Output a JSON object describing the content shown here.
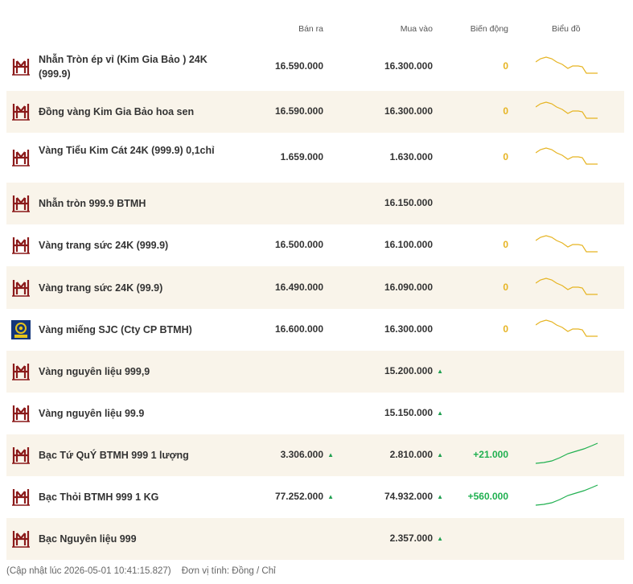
{
  "header": {
    "sell": "Bán ra",
    "buy": "Mua vào",
    "change": "Biến động",
    "chart": "Biểu đồ"
  },
  "colors": {
    "stripe": "#f9f4ea",
    "flat_line": "#e6b422",
    "up_line": "#20b050",
    "brand": "#8b1a1a",
    "sjc_blue": "#14367a",
    "sjc_gold": "#e5c31a"
  },
  "rows": [
    {
      "logo": "btmh-logo",
      "name": "Nhẫn Tròn ép vỉ (Kim Gia Bảo ) 24K (999.9)",
      "sell": "16.590.000",
      "sell_up": false,
      "buy": "16.300.000",
      "buy_up": false,
      "change": "0",
      "trend": "flat"
    },
    {
      "logo": "btmh-logo",
      "name": "Đồng vàng Kim Gia Bảo hoa sen",
      "sell": "16.590.000",
      "sell_up": false,
      "buy": "16.300.000",
      "buy_up": false,
      "change": "0",
      "trend": "flat"
    },
    {
      "logo": "btmh-logo",
      "name": "Vàng Tiểu Kim Cát 24K (999.9) 0,1chỉ",
      "sell": "1.659.000",
      "sell_up": false,
      "buy": "1.630.000",
      "buy_up": false,
      "change": "0",
      "trend": "flat"
    },
    {
      "logo": "btmh-logo",
      "name": "Nhẫn tròn 999.9 BTMH",
      "sell": "",
      "sell_up": false,
      "buy": "16.150.000",
      "buy_up": false,
      "change": "",
      "trend": "none"
    },
    {
      "logo": "btmh-logo",
      "name": "Vàng trang sức 24K (999.9)",
      "sell": "16.500.000",
      "sell_up": false,
      "buy": "16.100.000",
      "buy_up": false,
      "change": "0",
      "trend": "flat"
    },
    {
      "logo": "btmh-logo",
      "name": "Vàng trang sức 24K (99.9)",
      "sell": "16.490.000",
      "sell_up": false,
      "buy": "16.090.000",
      "buy_up": false,
      "change": "0",
      "trend": "flat"
    },
    {
      "logo": "sjc-logo",
      "name": "Vàng miếng SJC (Cty CP BTMH)",
      "sell": "16.600.000",
      "sell_up": false,
      "buy": "16.300.000",
      "buy_up": false,
      "change": "0",
      "trend": "flat"
    },
    {
      "logo": "btmh-logo",
      "name": "Vàng nguyên liệu 999,9",
      "sell": "",
      "sell_up": false,
      "buy": "15.200.000",
      "buy_up": true,
      "change": "",
      "trend": "none"
    },
    {
      "logo": "btmh-logo",
      "name": "Vàng nguyên liệu 99.9",
      "sell": "",
      "sell_up": false,
      "buy": "15.150.000",
      "buy_up": true,
      "change": "",
      "trend": "none"
    },
    {
      "logo": "btmh-logo",
      "name": "Bạc Tứ QuÝ BTMH 999 1 lượng",
      "sell": "3.306.000",
      "sell_up": true,
      "buy": "2.810.000",
      "buy_up": true,
      "change": "+21.000",
      "trend": "up"
    },
    {
      "logo": "btmh-logo",
      "name": "Bạc Thỏi BTMH 999 1 KG",
      "sell": "77.252.000",
      "sell_up": true,
      "buy": "74.932.000",
      "buy_up": true,
      "change": "+560.000",
      "trend": "up"
    },
    {
      "logo": "btmh-logo",
      "name": "Bạc Nguyên liệu 999",
      "sell": "",
      "sell_up": false,
      "buy": "2.357.000",
      "buy_up": true,
      "change": "",
      "trend": "none"
    }
  ],
  "footer": {
    "updated": "(Cập nhật lúc 2026-05-01 10:41:15.827)",
    "unit": "Đơn vị tính: Đồng / Chỉ"
  },
  "arrow_glyph": "▲"
}
